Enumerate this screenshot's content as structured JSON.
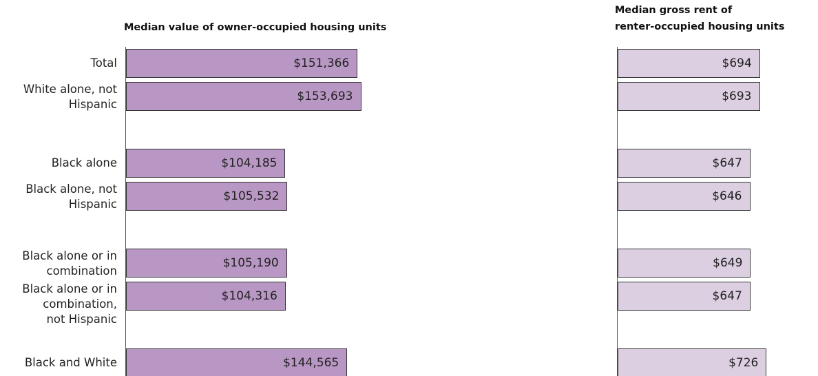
{
  "chart_data": [
    {
      "type": "bar",
      "orientation": "horizontal",
      "title": "Median value of owner-occupied housing units",
      "categories": [
        "Total",
        "White alone, not\nHispanic",
        "Black alone",
        "Black alone, not\nHispanic",
        "Black alone or in\ncombination",
        "Black alone or in\ncombination,\nnot Hispanic",
        "Black and White"
      ],
      "values": [
        151366,
        153693,
        104185,
        105532,
        105190,
        104316,
        144565
      ],
      "value_labels": [
        "$151,366",
        "$153,693",
        "$104,185",
        "$105,532",
        "$105,190",
        "$104,316",
        "$144,565"
      ],
      "color": "#b997c4"
    },
    {
      "type": "bar",
      "orientation": "horizontal",
      "title": [
        "Median gross rent of",
        "renter-occupied housing units"
      ],
      "values": [
        694,
        693,
        647,
        646,
        649,
        647,
        726
      ],
      "value_labels": [
        "$694",
        "$693",
        "$647",
        "$646",
        "$649",
        "$647",
        "$726"
      ],
      "color": "#dccfe1"
    }
  ]
}
